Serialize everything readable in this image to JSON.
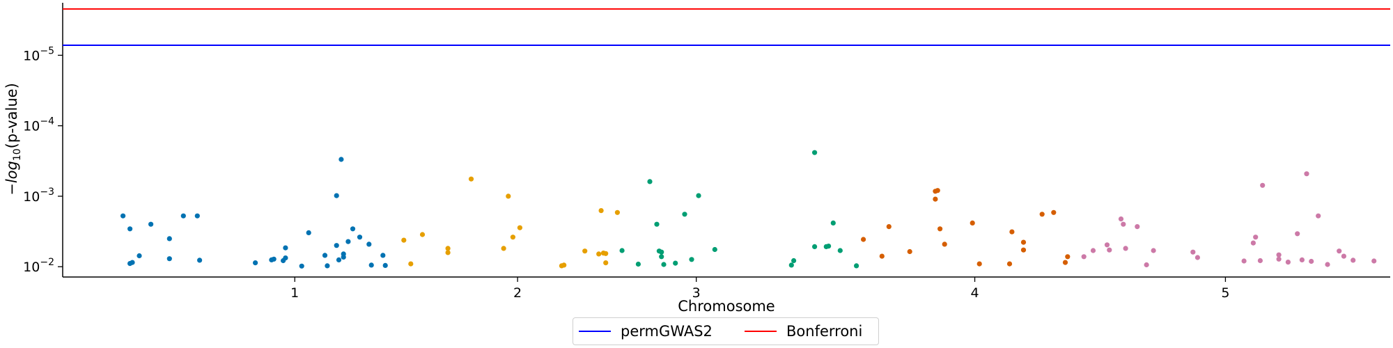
{
  "chart_data": {
    "type": "scatter",
    "xlabel": "Chromosome",
    "ylabel_parts": {
      "prefix": "−log",
      "sub": "10",
      "suffix": "(p-value)"
    },
    "y_scale": "log (inverted)",
    "ylim": [
      0.014,
      1.8e-06
    ],
    "xlim": [
      0,
      5.72
    ],
    "x_ticks": [
      {
        "label": "1",
        "pos": 1.0
      },
      {
        "label": "2",
        "pos": 1.96
      },
      {
        "label": "3",
        "pos": 2.73
      },
      {
        "label": "4",
        "pos": 3.93
      },
      {
        "label": "5",
        "pos": 5.01
      }
    ],
    "y_ticks": [
      {
        "base": "10",
        "exp": "−5",
        "value": 1e-05
      },
      {
        "base": "10",
        "exp": "−4",
        "value": 0.0001
      },
      {
        "base": "10",
        "exp": "−3",
        "value": 0.001
      },
      {
        "base": "10",
        "exp": "−2",
        "value": 0.01
      }
    ],
    "grid": false,
    "legend_position": "bottom-center",
    "hlines": [
      {
        "name": "permGWAS2",
        "y": 7.2e-06,
        "color": "#0000ff"
      },
      {
        "name": "Bonferroni",
        "y": 2.2e-06,
        "color": "#ff0000"
      }
    ],
    "series": [
      {
        "chromosome": "1",
        "color": "#0072b2",
        "points": [
          [
            0.26,
            0.0019
          ],
          [
            0.29,
            0.0029
          ],
          [
            0.29,
            0.009
          ],
          [
            0.3,
            0.0087
          ],
          [
            0.33,
            0.007
          ],
          [
            0.38,
            0.0025
          ],
          [
            0.46,
            0.004
          ],
          [
            0.46,
            0.0077
          ],
          [
            0.52,
            0.0019
          ],
          [
            0.58,
            0.0019
          ],
          [
            0.59,
            0.0081
          ],
          [
            0.83,
            0.0088
          ],
          [
            0.9,
            0.008
          ],
          [
            0.91,
            0.0078
          ],
          [
            0.95,
            0.0082
          ],
          [
            0.96,
            0.0054
          ],
          [
            0.96,
            0.0075
          ],
          [
            1.03,
            0.0098
          ],
          [
            1.06,
            0.0033
          ],
          [
            1.13,
            0.0069
          ],
          [
            1.14,
            0.0097
          ],
          [
            1.18,
            0.005
          ],
          [
            1.18,
            0.00098
          ],
          [
            1.19,
            0.008
          ],
          [
            1.2,
            0.0003
          ],
          [
            1.21,
            0.0066
          ],
          [
            1.21,
            0.0073
          ],
          [
            1.23,
            0.0044
          ],
          [
            1.25,
            0.0029
          ],
          [
            1.28,
            0.0038
          ],
          [
            1.32,
            0.0048
          ],
          [
            1.33,
            0.0095
          ],
          [
            1.38,
            0.0069
          ],
          [
            1.39,
            0.0096
          ]
        ]
      },
      {
        "chromosome": "2",
        "color": "#e69f00",
        "points": [
          [
            1.47,
            0.0042
          ],
          [
            1.5,
            0.0091
          ],
          [
            1.55,
            0.0035
          ],
          [
            1.66,
            0.0055
          ],
          [
            1.66,
            0.0063
          ],
          [
            1.76,
            0.00057
          ],
          [
            1.9,
            0.0055
          ],
          [
            1.92,
            0.001
          ],
          [
            1.94,
            0.0038
          ],
          [
            1.97,
            0.0028
          ],
          [
            2.15,
            0.0097
          ],
          [
            2.16,
            0.0095
          ],
          [
            2.25,
            0.006
          ],
          [
            2.31,
            0.0066
          ],
          [
            2.32,
            0.0016
          ],
          [
            2.33,
            0.0064
          ],
          [
            2.34,
            0.0065
          ],
          [
            2.34,
            0.0088
          ],
          [
            2.39,
            0.0017
          ]
        ]
      },
      {
        "chromosome": "3",
        "color": "#009e73",
        "points": [
          [
            2.41,
            0.0059
          ],
          [
            2.48,
            0.0092
          ],
          [
            2.53,
            0.00062
          ],
          [
            2.56,
            0.0025
          ],
          [
            2.57,
            0.006
          ],
          [
            2.58,
            0.0062
          ],
          [
            2.58,
            0.0072
          ],
          [
            2.59,
            0.0093
          ],
          [
            2.64,
            0.0089
          ],
          [
            2.68,
            0.0018
          ],
          [
            2.71,
            0.0079
          ],
          [
            2.74,
            0.00098
          ],
          [
            2.81,
            0.0057
          ],
          [
            3.14,
            0.0095
          ],
          [
            3.15,
            0.0082
          ],
          [
            3.24,
            0.00024
          ],
          [
            3.24,
            0.0052
          ],
          [
            3.29,
            0.0052
          ],
          [
            3.3,
            0.0051
          ],
          [
            3.32,
            0.0024
          ],
          [
            3.35,
            0.0059
          ],
          [
            3.42,
            0.0097
          ]
        ]
      },
      {
        "chromosome": "4",
        "color": "#d55e00",
        "points": [
          [
            3.45,
            0.0041
          ],
          [
            3.53,
            0.0071
          ],
          [
            3.56,
            0.0027
          ],
          [
            3.65,
            0.0061
          ],
          [
            3.76,
            0.00085
          ],
          [
            3.76,
            0.0011
          ],
          [
            3.77,
            0.00083
          ],
          [
            3.78,
            0.0029
          ],
          [
            3.8,
            0.0048
          ],
          [
            3.92,
            0.0024
          ],
          [
            3.95,
            0.0091
          ],
          [
            4.08,
            0.0091
          ],
          [
            4.09,
            0.0032
          ],
          [
            4.14,
            0.0045
          ],
          [
            4.14,
            0.0058
          ],
          [
            4.22,
            0.0018
          ],
          [
            4.27,
            0.0017
          ],
          [
            4.32,
            0.0087
          ],
          [
            4.33,
            0.0072
          ]
        ]
      },
      {
        "chromosome": "5",
        "color": "#cc79a7",
        "points": [
          [
            4.4,
            0.0072
          ],
          [
            4.44,
            0.0059
          ],
          [
            4.5,
            0.0049
          ],
          [
            4.51,
            0.0058
          ],
          [
            4.56,
            0.0021
          ],
          [
            4.57,
            0.0025
          ],
          [
            4.58,
            0.0055
          ],
          [
            4.63,
            0.0027
          ],
          [
            4.67,
            0.0094
          ],
          [
            4.7,
            0.0059
          ],
          [
            4.87,
            0.0062
          ],
          [
            4.89,
            0.0074
          ],
          [
            5.09,
            0.0083
          ],
          [
            5.13,
            0.0046
          ],
          [
            5.14,
            0.0038
          ],
          [
            5.16,
            0.0082
          ],
          [
            5.17,
            0.0007
          ],
          [
            5.24,
            0.0068
          ],
          [
            5.24,
            0.0078
          ],
          [
            5.28,
            0.0086
          ],
          [
            5.32,
            0.0034
          ],
          [
            5.34,
            0.008
          ],
          [
            5.36,
            0.00048
          ],
          [
            5.38,
            0.0084
          ],
          [
            5.41,
            0.0019
          ],
          [
            5.45,
            0.0093
          ],
          [
            5.5,
            0.006
          ],
          [
            5.52,
            0.0071
          ],
          [
            5.56,
            0.0081
          ],
          [
            5.65,
            0.0083
          ]
        ]
      }
    ]
  }
}
